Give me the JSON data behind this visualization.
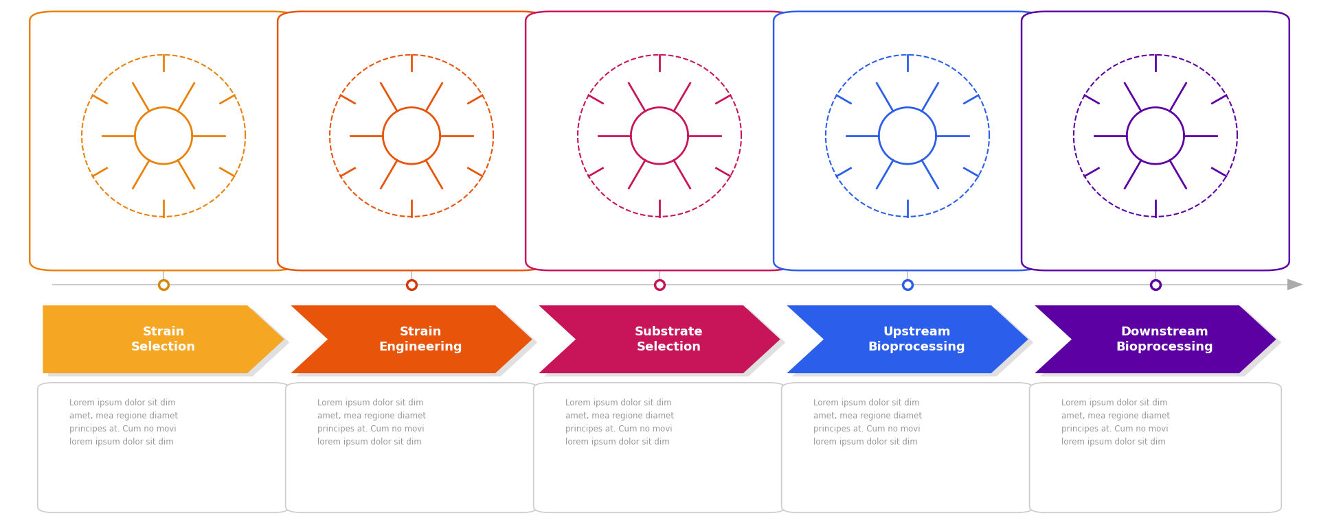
{
  "steps": [
    {
      "title": "Strain\nSelection",
      "color_main": "#F5A623",
      "icon_color": "#E8820C",
      "dot_color": "#D4890A"
    },
    {
      "title": "Strain\nEngineering",
      "color_main": "#E8540A",
      "icon_color": "#E8540A",
      "dot_color": "#D43A08"
    },
    {
      "title": "Substrate\nSelection",
      "color_main": "#C8155A",
      "icon_color": "#C8155A",
      "dot_color": "#C8155A"
    },
    {
      "title": "Upstream\nBioprocessing",
      "color_main": "#2B5EEB",
      "icon_color": "#2B5EEB",
      "dot_color": "#2B5EEB"
    },
    {
      "title": "Downstream\nBioprocessing",
      "color_main": "#5C00A3",
      "icon_color": "#5C00A3",
      "dot_color": "#5C00A3"
    }
  ],
  "body_text": "Lorem ipsum dolor sit dim\namet, mea regione diamet\nprincipes at. Cum no movi\nlorem ipsum dolor sit dim",
  "background_color": "#FFFFFF",
  "text_color_white": "#FFFFFF",
  "text_color_body": "#999999",
  "line_color": "#CCCCCC",
  "shadow_color": "#E0E0E0",
  "box_border_color": "#CCCCCC"
}
